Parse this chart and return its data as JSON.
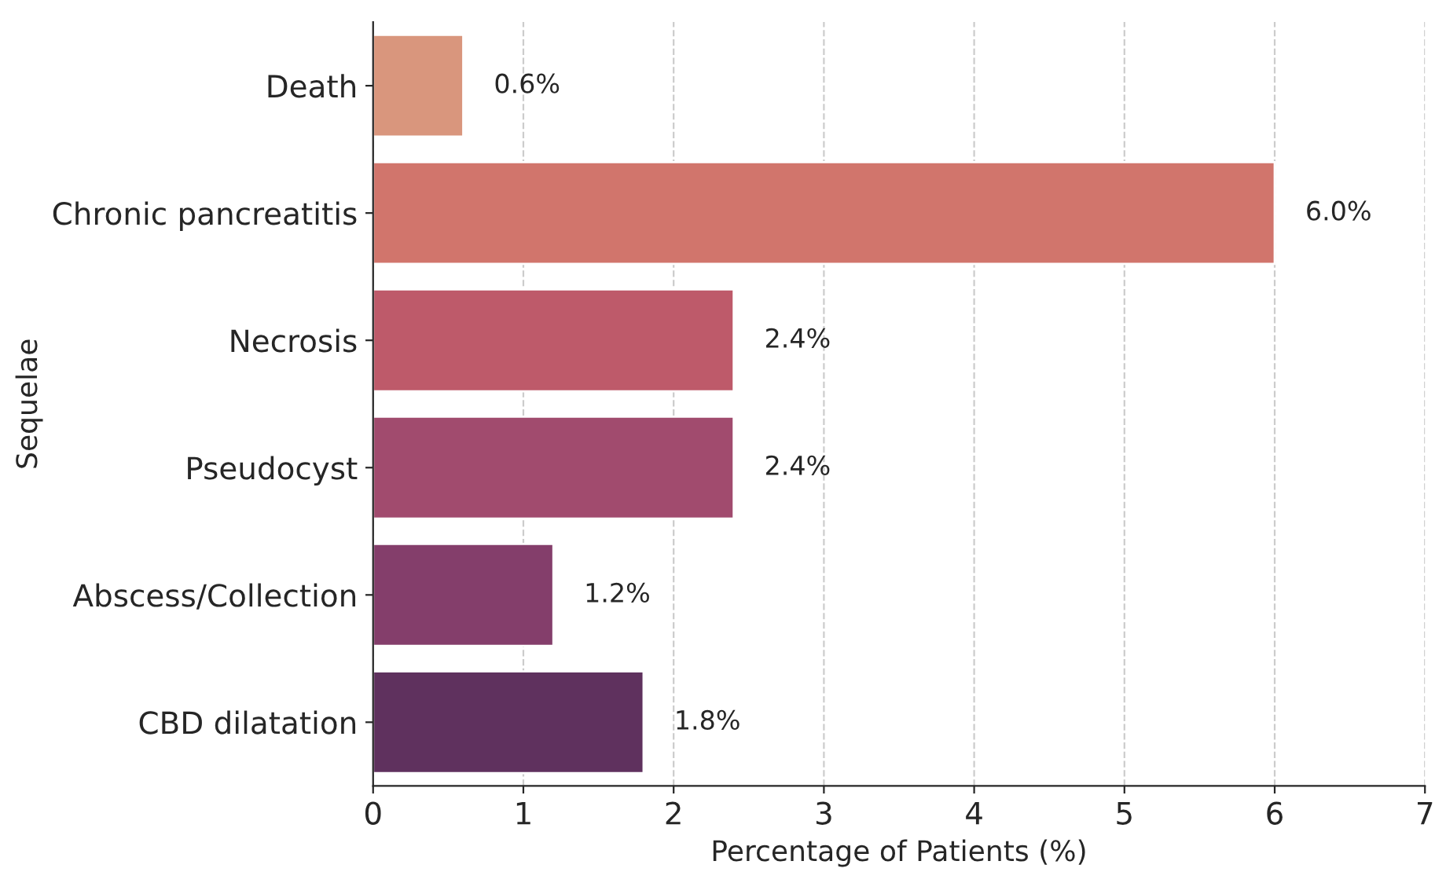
{
  "chart_data": {
    "type": "bar",
    "orientation": "horizontal",
    "xlabel": "Percentage of Patients (%)",
    "ylabel": "Sequelae",
    "categories": [
      "Death",
      "Chronic pancreatitis",
      "Necrosis",
      "Pseudocyst",
      "Abscess/Collection",
      "CBD dilatation"
    ],
    "values": [
      0.6,
      6.0,
      2.4,
      2.4,
      1.2,
      1.8
    ],
    "value_labels": [
      "0.6%",
      "6.0%",
      "2.4%",
      "2.4%",
      "1.2%",
      "1.8%"
    ],
    "colors": [
      "#d9967d",
      "#d1756c",
      "#be5a6a",
      "#a14b6e",
      "#843e6b",
      "#5f315e"
    ],
    "xlim": [
      0,
      7
    ],
    "xticks": [
      0,
      1,
      2,
      3,
      4,
      5,
      6,
      7
    ],
    "grid": "x",
    "line_style": "dashed"
  }
}
